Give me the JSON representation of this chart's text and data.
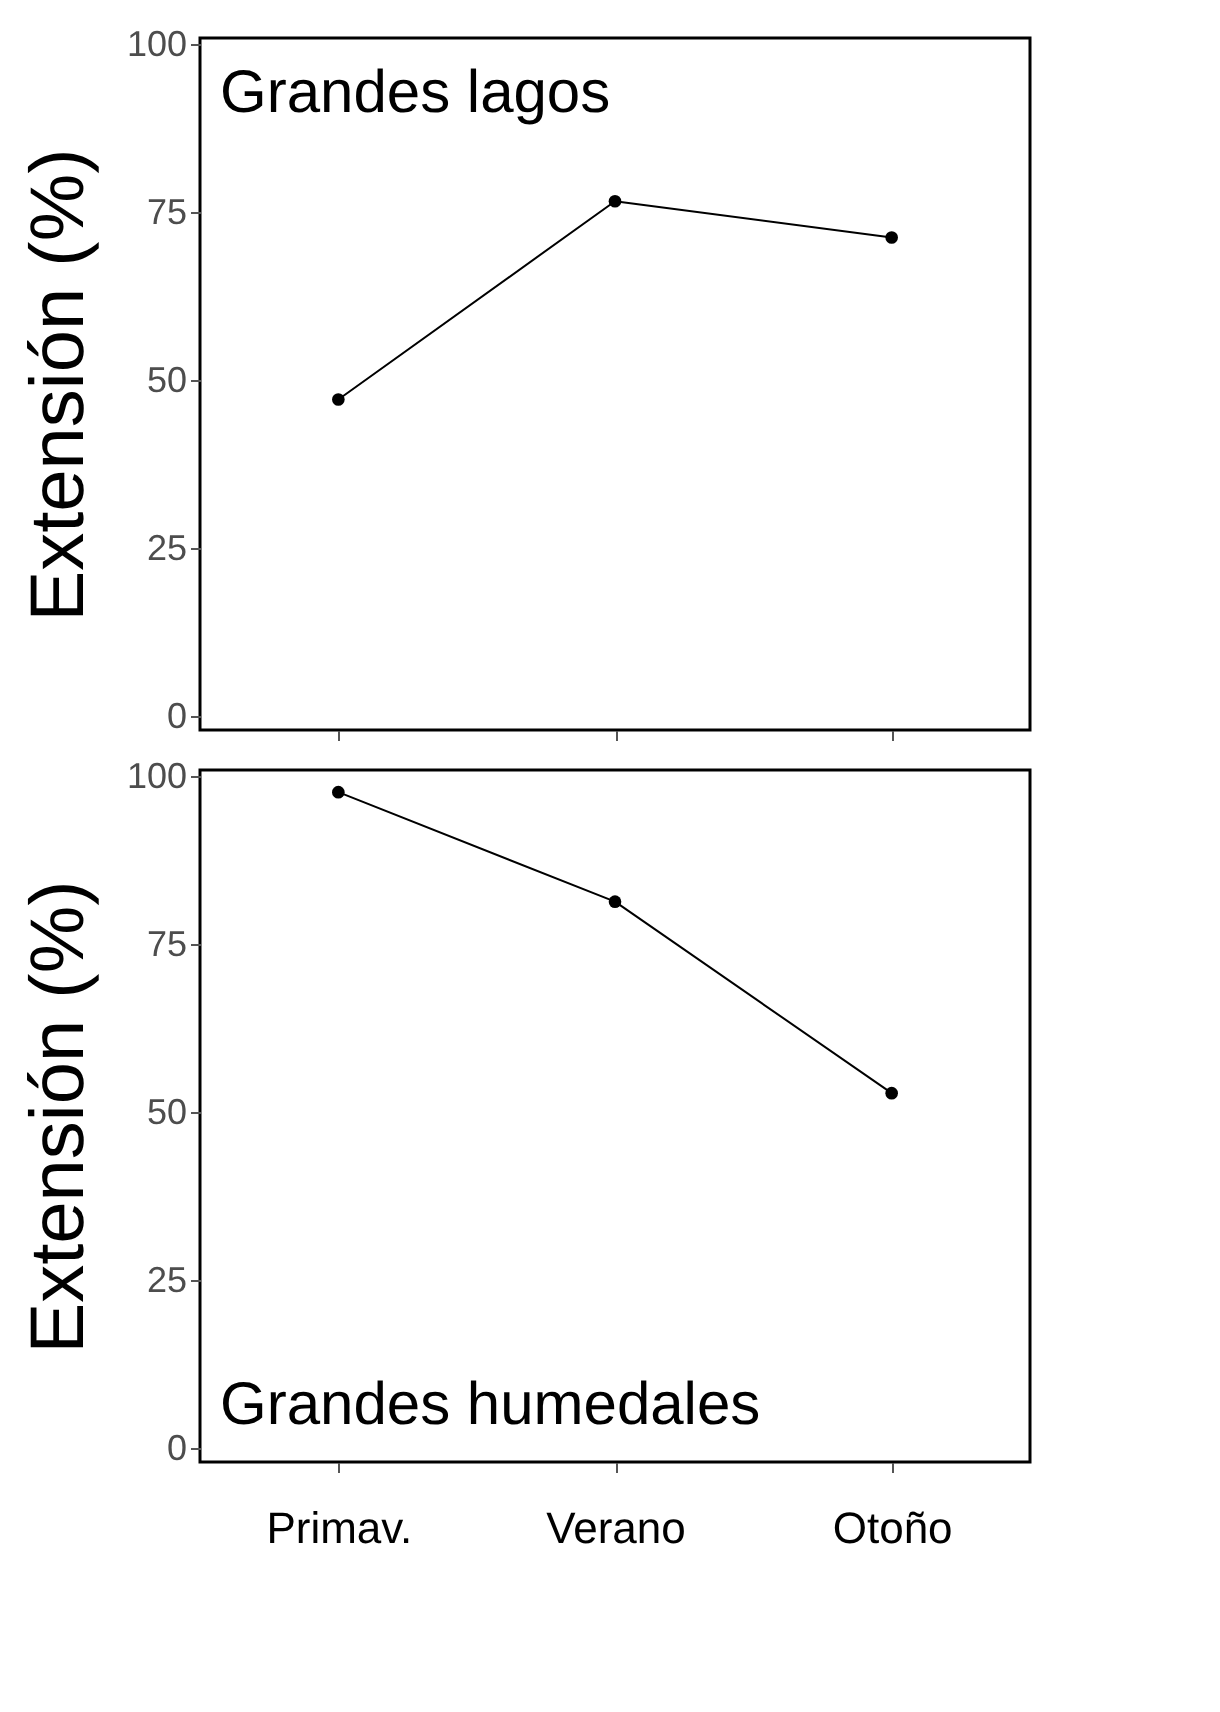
{
  "chart_data": [
    {
      "type": "line",
      "ylabel": "Extensión (%)",
      "annotations": [
        "Grandes lagos"
      ],
      "categories": [
        null,
        null,
        null
      ],
      "series": [
        {
          "color": "#000000",
          "values": [
            47.2,
            76.7,
            71.3
          ]
        }
      ],
      "ylim": [
        -2,
        101
      ],
      "yticks": [
        0,
        25,
        50,
        75,
        100
      ],
      "marker": "circle",
      "grid": false,
      "tick_labels": "y"
    },
    {
      "type": "line",
      "ylabel": "Extensión (%)",
      "annotations": [
        "Grandes humedales"
      ],
      "categories": [
        "Primav.",
        "Verano",
        "Otoño"
      ],
      "series": [
        {
          "color": "#000000",
          "values": [
            97.7,
            81.4,
            52.9
          ]
        }
      ],
      "ylim": [
        -2,
        101
      ],
      "yticks": [
        0,
        25,
        50,
        75,
        100
      ],
      "marker": "circle",
      "grid": false
    }
  ]
}
